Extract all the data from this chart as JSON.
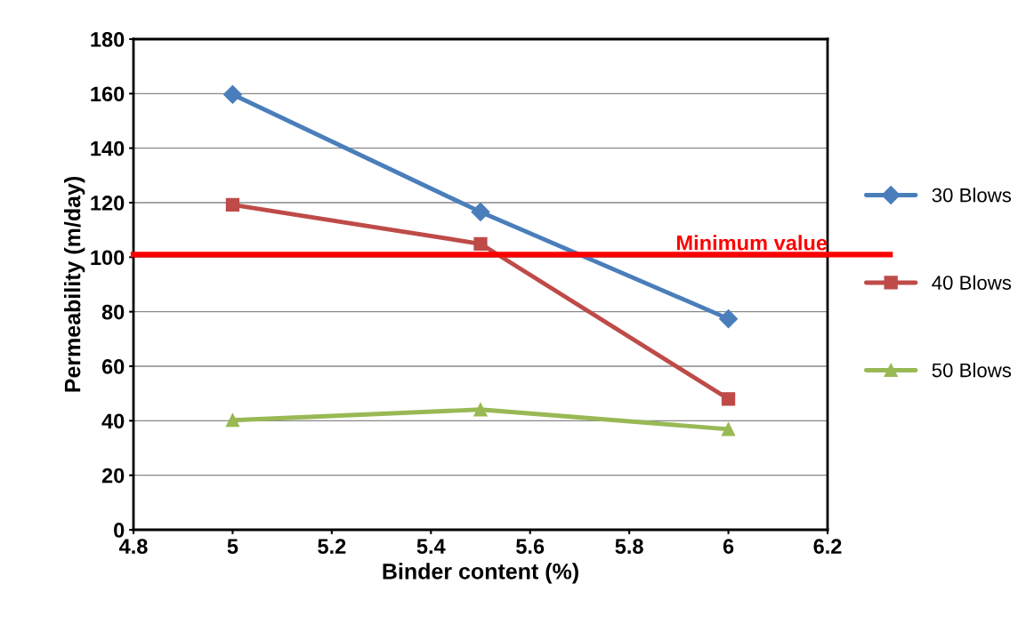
{
  "chart_data": {
    "type": "line",
    "xlabel": "Binder content (%)",
    "ylabel": "Permeability (m/day)",
    "x": [
      5,
      5.5,
      6
    ],
    "series": [
      {
        "name": "30 Blows",
        "color": "#4a7ebb",
        "values": [
          159.7,
          116.6,
          77.4
        ],
        "marker": "diamond"
      },
      {
        "name": "40 Blows",
        "color": "#be4b48",
        "values": [
          119.2,
          104.9,
          48
        ],
        "marker": "square"
      },
      {
        "name": "50 Blows",
        "color": "#98b954",
        "values": [
          40.2,
          44.1,
          36.9
        ],
        "marker": "triangle"
      }
    ],
    "xlim": [
      4.8,
      6.2
    ],
    "xticks": [
      4.8,
      5,
      5.2,
      5.4,
      5.6,
      5.8,
      6,
      6.2
    ],
    "ylim": [
      0,
      180
    ],
    "yticks": [
      0,
      20,
      40,
      60,
      80,
      100,
      120,
      140,
      160,
      180
    ],
    "ref_lines": [
      {
        "axis": "y",
        "value": 101,
        "label": "Minimum value",
        "color": "#ff0000"
      }
    ],
    "grid": "y",
    "legend": "right",
    "line_style": "solid"
  }
}
